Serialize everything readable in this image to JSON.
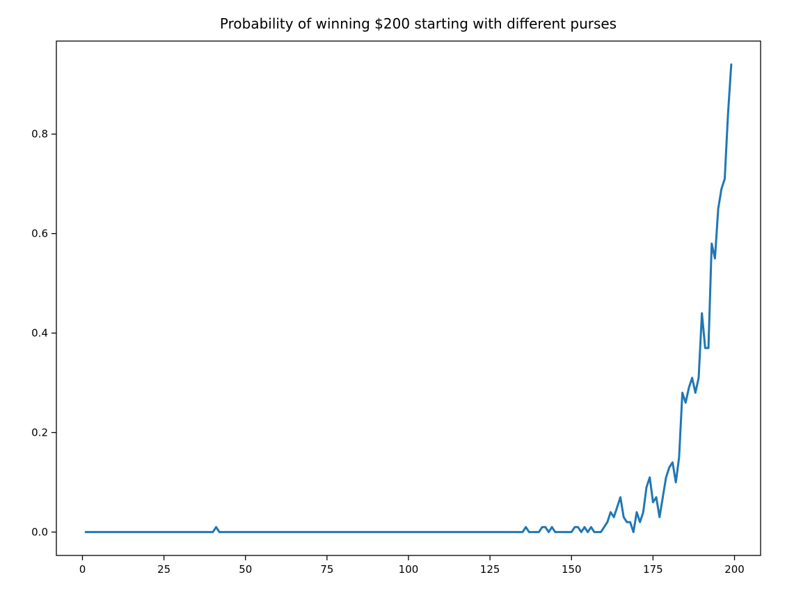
{
  "chart_data": {
    "type": "line",
    "title": "Probability of winning $200 starting with different purses",
    "xlabel": "",
    "ylabel": "",
    "xlim": [
      -8,
      208
    ],
    "ylim": [
      -0.047,
      0.987
    ],
    "xticks": [
      0,
      25,
      50,
      75,
      100,
      125,
      150,
      175,
      200
    ],
    "xtick_labels": [
      "0",
      "25",
      "50",
      "75",
      "100",
      "125",
      "150",
      "175",
      "200"
    ],
    "yticks": [
      0.0,
      0.2,
      0.4,
      0.6,
      0.8
    ],
    "ytick_labels": [
      "0.0",
      "0.2",
      "0.4",
      "0.6",
      "0.8"
    ],
    "grid": false,
    "series": [
      {
        "color": "#1f77b4",
        "points": [
          [
            1,
            0
          ],
          [
            40,
            0
          ],
          [
            41,
            0.01
          ],
          [
            42,
            0
          ],
          [
            135,
            0
          ],
          [
            136,
            0.01
          ],
          [
            137,
            0
          ],
          [
            140,
            0
          ],
          [
            141,
            0.01
          ],
          [
            142,
            0.01
          ],
          [
            143,
            0
          ],
          [
            144,
            0.01
          ],
          [
            145,
            0
          ],
          [
            150,
            0
          ],
          [
            151,
            0.01
          ],
          [
            152,
            0.01
          ],
          [
            153,
            0
          ],
          [
            154,
            0.01
          ],
          [
            155,
            0
          ],
          [
            156,
            0.01
          ],
          [
            157,
            0
          ],
          [
            159,
            0
          ],
          [
            160,
            0.01
          ],
          [
            161,
            0.02
          ],
          [
            162,
            0.04
          ],
          [
            163,
            0.03
          ],
          [
            164,
            0.05
          ],
          [
            165,
            0.07
          ],
          [
            166,
            0.03
          ],
          [
            167,
            0.02
          ],
          [
            168,
            0.02
          ],
          [
            169,
            0
          ],
          [
            170,
            0.04
          ],
          [
            171,
            0.02
          ],
          [
            172,
            0.04
          ],
          [
            173,
            0.09
          ],
          [
            174,
            0.11
          ],
          [
            175,
            0.06
          ],
          [
            176,
            0.07
          ],
          [
            177,
            0.03
          ],
          [
            178,
            0.07
          ],
          [
            179,
            0.11
          ],
          [
            180,
            0.13
          ],
          [
            181,
            0.14
          ],
          [
            182,
            0.1
          ],
          [
            183,
            0.15
          ],
          [
            184,
            0.28
          ],
          [
            185,
            0.26
          ],
          [
            186,
            0.29
          ],
          [
            187,
            0.31
          ],
          [
            188,
            0.28
          ],
          [
            189,
            0.31
          ],
          [
            190,
            0.44
          ],
          [
            191,
            0.37
          ],
          [
            192,
            0.37
          ],
          [
            193,
            0.58
          ],
          [
            194,
            0.55
          ],
          [
            195,
            0.65
          ],
          [
            196,
            0.69
          ],
          [
            197,
            0.71
          ],
          [
            198,
            0.84
          ],
          [
            199,
            0.94
          ]
        ]
      }
    ]
  }
}
